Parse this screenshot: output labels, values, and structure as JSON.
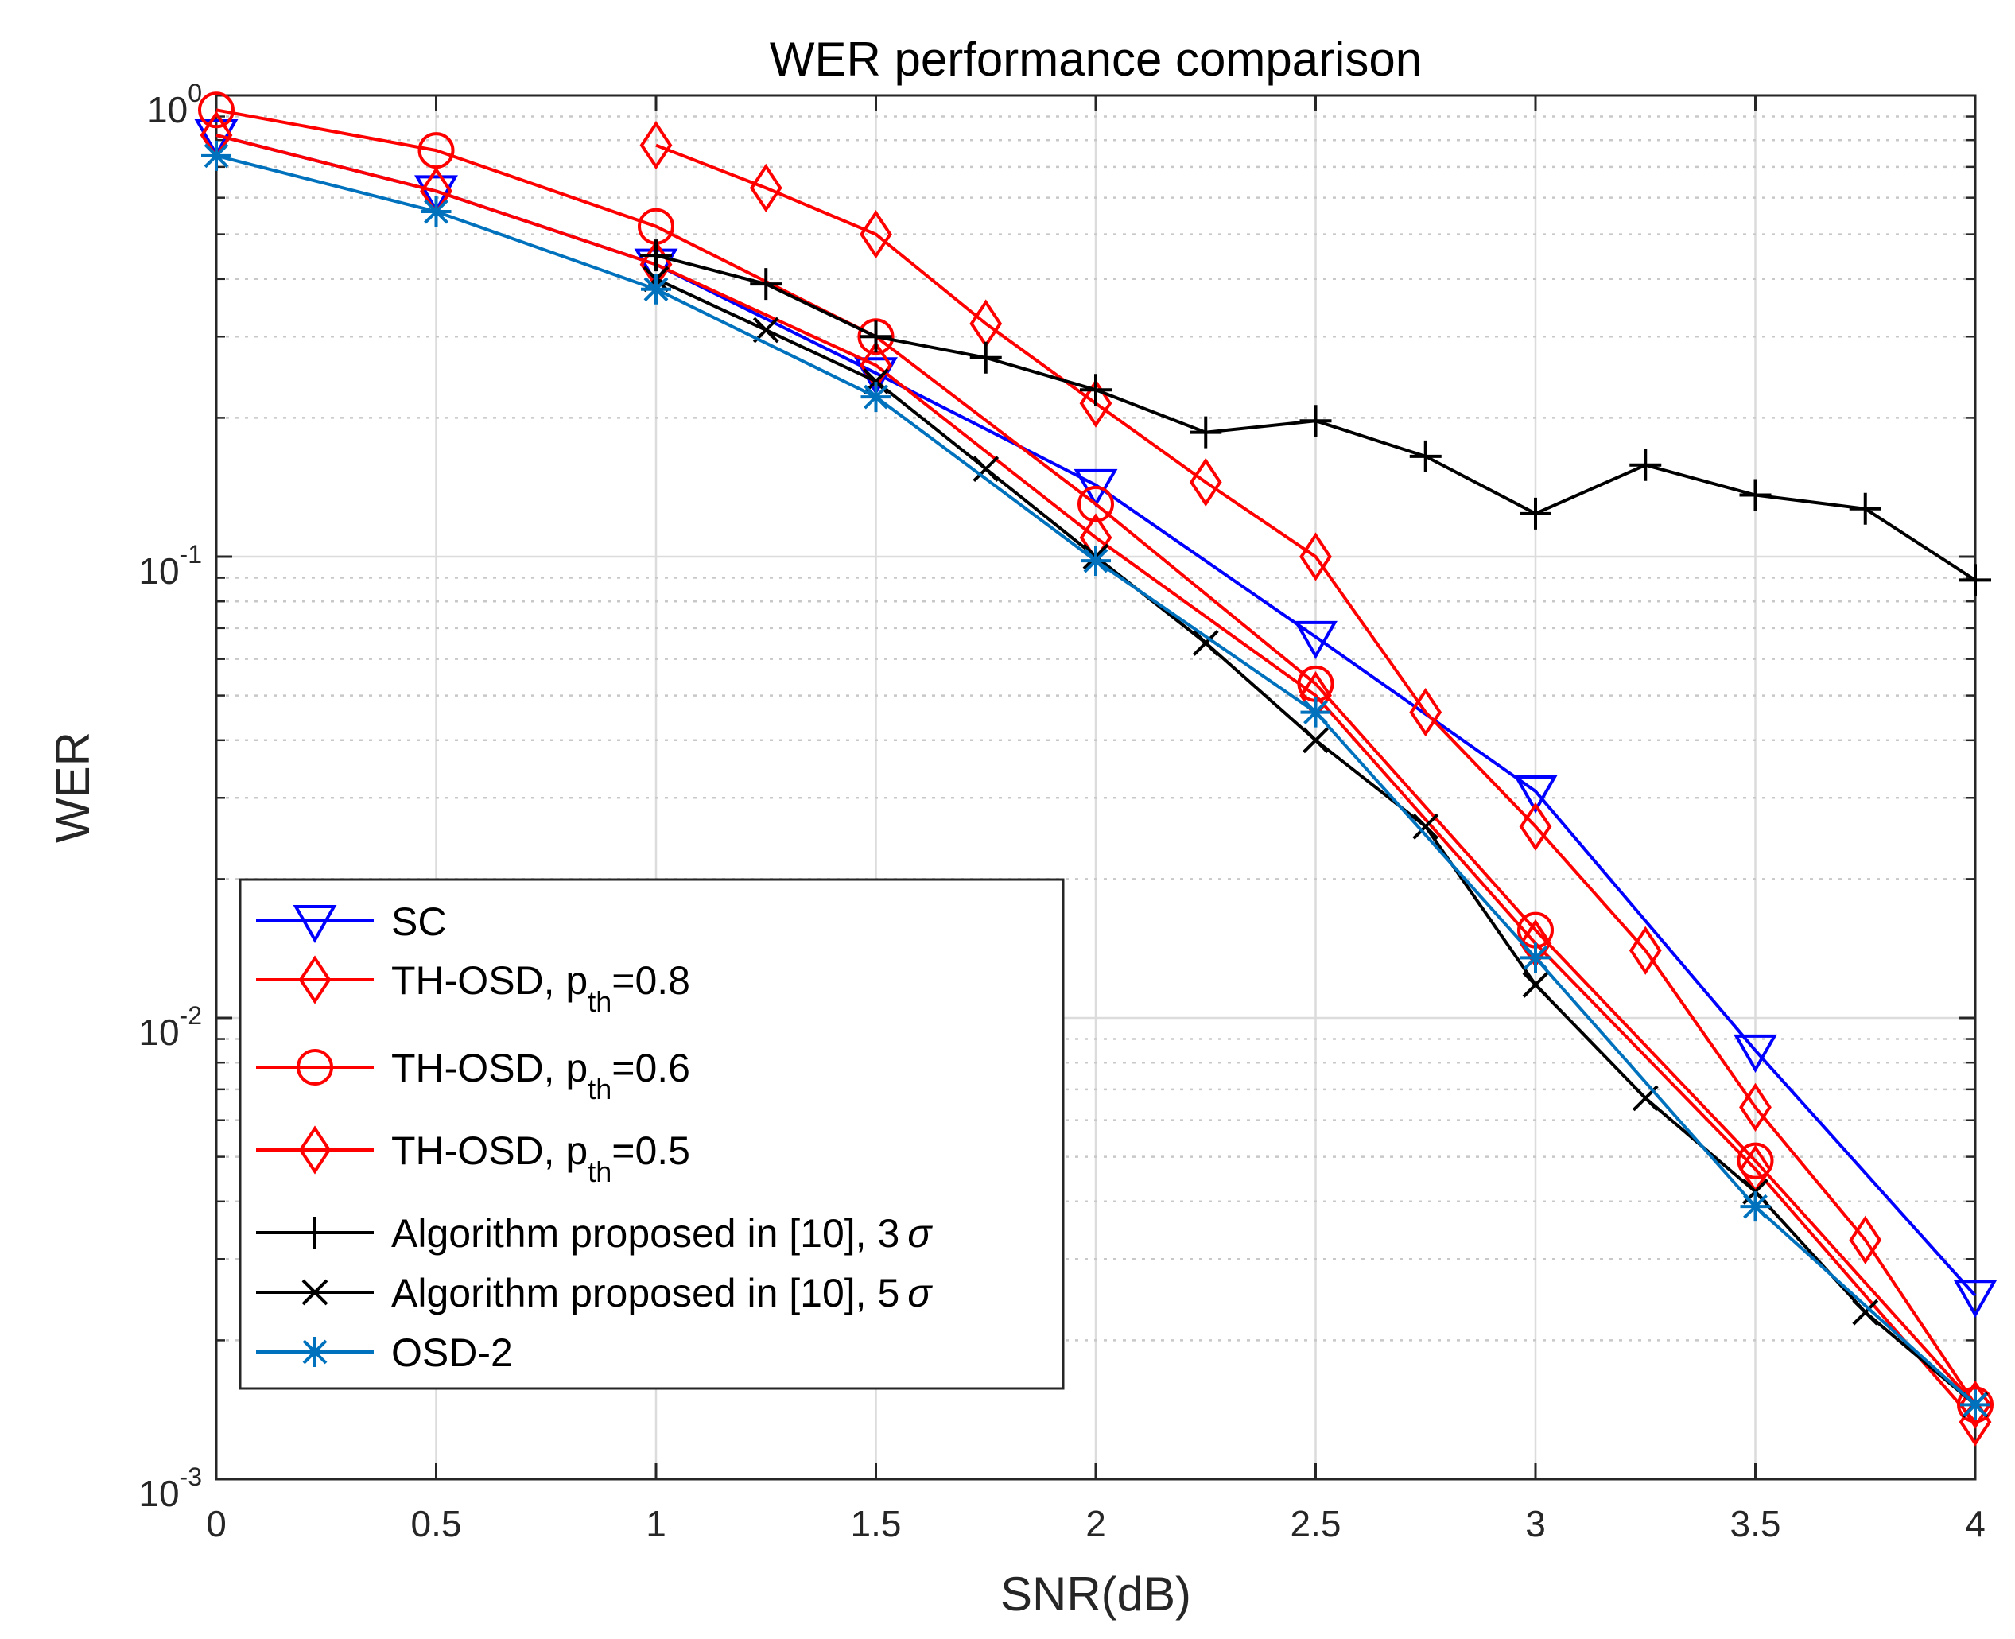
{
  "chart_data": {
    "type": "line",
    "title": "WER performance comparison",
    "xlabel": "SNR(dB)",
    "ylabel": "WER",
    "xlim": [
      0,
      4
    ],
    "ylim": [
      0.001,
      1
    ],
    "yscale": "log",
    "grid": true,
    "minor_grid": true,
    "legend_position": "bottom-left",
    "x_ticks": [
      {
        "value": 0,
        "label": "0"
      },
      {
        "value": 0.5,
        "label": "0.5"
      },
      {
        "value": 1,
        "label": "1"
      },
      {
        "value": 1.5,
        "label": "1.5"
      },
      {
        "value": 2,
        "label": "2"
      },
      {
        "value": 2.5,
        "label": "2.5"
      },
      {
        "value": 3,
        "label": "3"
      },
      {
        "value": 3.5,
        "label": "3.5"
      },
      {
        "value": 4,
        "label": "4"
      }
    ],
    "y_ticks": [
      {
        "value": 1,
        "base": "10",
        "exp": "0"
      },
      {
        "value": 0.1,
        "base": "10",
        "exp": "-1"
      },
      {
        "value": 0.01,
        "base": "10",
        "exp": "-2"
      },
      {
        "value": 0.001,
        "base": "10",
        "exp": "-3"
      }
    ],
    "series": [
      {
        "key": "sc",
        "label": "SC",
        "color": "#0000ff",
        "marker": "triangle-down",
        "points": [
          [
            0,
            0.82
          ],
          [
            0.5,
            0.62
          ],
          [
            1,
            0.43
          ],
          [
            1.5,
            0.25
          ],
          [
            2,
            0.143
          ],
          [
            2.5,
            0.067
          ],
          [
            3,
            0.031
          ],
          [
            3.5,
            0.0085
          ],
          [
            4,
            0.0025
          ]
        ]
      },
      {
        "key": "th08",
        "label": "TH-OSD, p",
        "sub": "th",
        "suffix": "=0.8",
        "color": "#ff0000",
        "marker": "diamond",
        "points": [
          [
            1,
            0.78
          ],
          [
            1.25,
            0.63
          ],
          [
            1.5,
            0.5
          ],
          [
            1.75,
            0.32
          ],
          [
            2,
            0.215
          ],
          [
            2.25,
            0.145
          ],
          [
            2.5,
            0.1
          ],
          [
            2.75,
            0.046
          ],
          [
            3,
            0.026
          ],
          [
            3.25,
            0.014
          ],
          [
            3.5,
            0.0064
          ],
          [
            3.75,
            0.0033
          ],
          [
            4,
            0.00145
          ]
        ]
      },
      {
        "key": "th06",
        "label": "TH-OSD, p",
        "sub": "th",
        "suffix": "=0.6",
        "color": "#ff0000",
        "marker": "circle",
        "points": [
          [
            0,
            0.93
          ],
          [
            0.5,
            0.76
          ],
          [
            1,
            0.52
          ],
          [
            1.5,
            0.3
          ],
          [
            2,
            0.13
          ],
          [
            2.5,
            0.053
          ],
          [
            3,
            0.0155
          ],
          [
            3.5,
            0.0049
          ],
          [
            4,
            0.00145
          ]
        ]
      },
      {
        "key": "th05",
        "label": "TH-OSD, p",
        "sub": "th",
        "suffix": "=0.5",
        "color": "#ff0000",
        "marker": "diamond",
        "points": [
          [
            0,
            0.82
          ],
          [
            0.5,
            0.62
          ],
          [
            1,
            0.43
          ],
          [
            1.5,
            0.26
          ],
          [
            2,
            0.11
          ],
          [
            2.5,
            0.05
          ],
          [
            3,
            0.0145
          ],
          [
            3.5,
            0.0047
          ],
          [
            4,
            0.00133
          ]
        ]
      },
      {
        "key": "alg3",
        "label": "Algorithm proposed in [10], 3",
        "sigma": "σ",
        "color": "#000000",
        "marker": "plus",
        "points": [
          [
            1,
            0.45
          ],
          [
            1.25,
            0.39
          ],
          [
            1.5,
            0.3
          ],
          [
            1.75,
            0.27
          ],
          [
            2,
            0.23
          ],
          [
            2.25,
            0.186
          ],
          [
            2.5,
            0.197
          ],
          [
            2.75,
            0.165
          ],
          [
            3,
            0.124
          ],
          [
            3.25,
            0.158
          ],
          [
            3.5,
            0.136
          ],
          [
            3.75,
            0.127
          ],
          [
            4,
            0.089
          ]
        ]
      },
      {
        "key": "alg5",
        "label": "Algorithm proposed in [10], 5",
        "sigma": "σ",
        "color": "#000000",
        "marker": "x",
        "points": [
          [
            1,
            0.4
          ],
          [
            1.25,
            0.31
          ],
          [
            1.5,
            0.24
          ],
          [
            1.75,
            0.155
          ],
          [
            2,
            0.1
          ],
          [
            2.25,
            0.065
          ],
          [
            2.5,
            0.04
          ],
          [
            2.75,
            0.026
          ],
          [
            3,
            0.0118
          ],
          [
            3.25,
            0.0067
          ],
          [
            3.5,
            0.0042
          ],
          [
            3.75,
            0.0023
          ],
          [
            4,
            0.00145
          ]
        ]
      },
      {
        "key": "osd2",
        "label": "OSD-2",
        "color": "#0072bd",
        "marker": "asterisk",
        "points": [
          [
            0,
            0.74
          ],
          [
            0.5,
            0.56
          ],
          [
            1,
            0.38
          ],
          [
            1.5,
            0.222
          ],
          [
            2,
            0.098
          ],
          [
            2.5,
            0.046
          ],
          [
            3,
            0.0135
          ],
          [
            3.5,
            0.0039
          ],
          [
            4,
            0.00145
          ]
        ]
      }
    ]
  }
}
